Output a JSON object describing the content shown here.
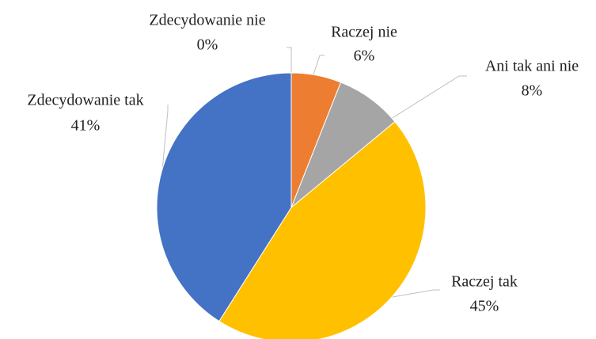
{
  "chart_data": {
    "type": "pie",
    "categories": [
      "Zdecydowanie nie",
      "Raczej nie",
      "Ani tak ani nie",
      "Raczej tak",
      "Zdecydowanie tak"
    ],
    "values": [
      0,
      6,
      8,
      45,
      41
    ],
    "value_labels": [
      "0%",
      "6%",
      "8%",
      "45%",
      "41%"
    ],
    "colors": [
      "#5b9bd5",
      "#ed7d31",
      "#a5a5a5",
      "#ffc000",
      "#4472c4"
    ]
  }
}
